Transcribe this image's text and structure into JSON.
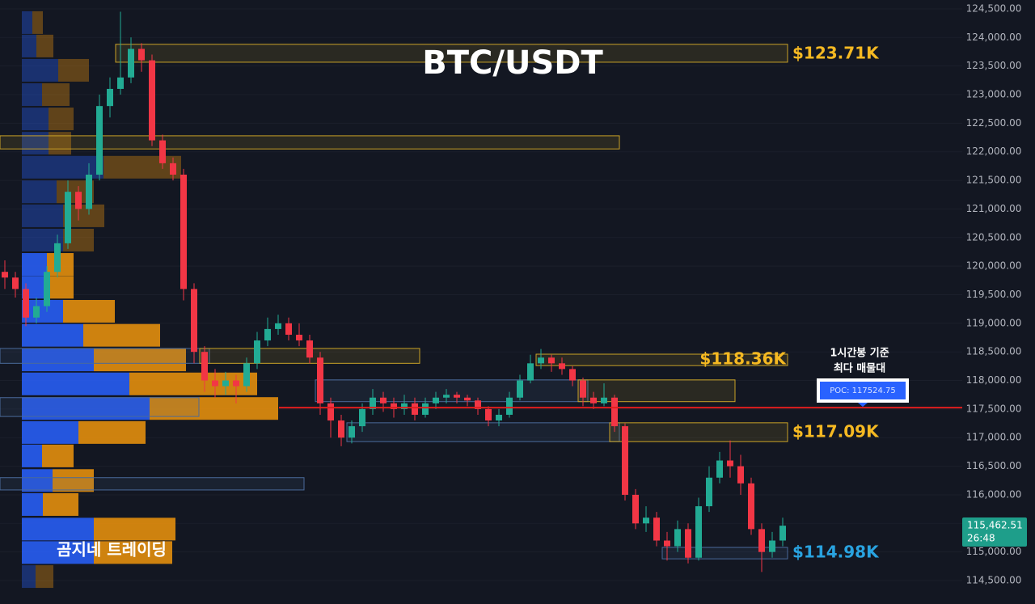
{
  "chart_data": {
    "type": "candlestick",
    "title": "BTC/USDT",
    "watermark": "곰지네 트레이딩",
    "ylim": [
      114090,
      124655
    ],
    "yticks": [
      {
        "value": 114500,
        "label": "114,500.00"
      },
      {
        "value": 115000,
        "label": "115,000.00"
      },
      {
        "value": 115500,
        "label": "115,500.00"
      },
      {
        "value": 116000,
        "label": "116,000.00"
      },
      {
        "value": 116500,
        "label": "116,500.00"
      },
      {
        "value": 117000,
        "label": "117,000.00"
      },
      {
        "value": 117500,
        "label": "117,500.00"
      },
      {
        "value": 118000,
        "label": "118,000.00"
      },
      {
        "value": 118500,
        "label": "118,500.00"
      },
      {
        "value": 119000,
        "label": "119,000.00"
      },
      {
        "value": 119500,
        "label": "119,500.00"
      },
      {
        "value": 120000,
        "label": "120,000.00"
      },
      {
        "value": 120500,
        "label": "120,500.00"
      },
      {
        "value": 121000,
        "label": "121,000.00"
      },
      {
        "value": 121500,
        "label": "121,500.00"
      },
      {
        "value": 122000,
        "label": "122,000.00"
      },
      {
        "value": 122500,
        "label": "122,500.00"
      },
      {
        "value": 123000,
        "label": "123,000.00"
      },
      {
        "value": 123500,
        "label": "123,500.00"
      },
      {
        "value": 124000,
        "label": "124,000.00"
      },
      {
        "value": 124500,
        "label": "124,500.00"
      }
    ],
    "grid": true,
    "up_color": "#22ab94",
    "down_color": "#f23645",
    "candles": {
      "open": [
        119900,
        119800,
        119600,
        119100,
        119300,
        119900,
        120400,
        121300,
        121000,
        121600,
        122800,
        123100,
        123300,
        123800,
        123600,
        122200,
        121800,
        121600,
        119600,
        118500,
        118000,
        117900,
        118000,
        117900,
        118300,
        118700,
        118900,
        119000,
        118800,
        118700,
        118400,
        117600,
        117300,
        117000,
        117200,
        117500,
        117700,
        117600,
        117500,
        117600,
        117400,
        117600,
        117700,
        117750,
        117700,
        117650,
        117500,
        117300,
        117400,
        117700,
        118000,
        118300,
        118400,
        118300,
        118200,
        118000,
        117700,
        117600,
        117700,
        117200,
        116000,
        115500,
        115600,
        115200,
        115100,
        115400,
        114900,
        115800,
        116300,
        116600,
        116500,
        116200,
        115400,
        115000,
        115200
      ],
      "high": [
        120100,
        119900,
        119700,
        119450,
        120000,
        120550,
        121500,
        121400,
        121800,
        123000,
        123300,
        124450,
        124000,
        123900,
        123700,
        122300,
        121900,
        121700,
        119700,
        118600,
        118200,
        118150,
        118100,
        118400,
        118850,
        119100,
        119150,
        119100,
        119000,
        118800,
        118500,
        117700,
        117400,
        117300,
        117600,
        117850,
        117800,
        117700,
        117750,
        117700,
        117700,
        117800,
        117850,
        117800,
        117750,
        117700,
        117550,
        117500,
        117800,
        118100,
        118450,
        118550,
        118450,
        118400,
        118250,
        118050,
        117800,
        117950,
        117750,
        117250,
        116100,
        115800,
        115700,
        115350,
        115550,
        115500,
        115950,
        116500,
        116750,
        116950,
        116700,
        116300,
        115500,
        115350,
        115600
      ],
      "low": [
        119600,
        119450,
        118950,
        119000,
        119200,
        119800,
        120300,
        120800,
        120900,
        121500,
        122600,
        123000,
        123200,
        123400,
        122100,
        121700,
        121500,
        119400,
        118300,
        117800,
        117700,
        117750,
        117600,
        117800,
        118200,
        118600,
        118800,
        118700,
        118600,
        118300,
        117400,
        117000,
        116850,
        116900,
        117100,
        117400,
        117450,
        117350,
        117400,
        117300,
        117350,
        117500,
        117600,
        117600,
        117550,
        117400,
        117200,
        117200,
        117350,
        117650,
        117950,
        118200,
        118150,
        118100,
        117900,
        117550,
        117500,
        117550,
        117100,
        115900,
        115400,
        115350,
        115100,
        114850,
        115000,
        114800,
        114850,
        115700,
        116200,
        116300,
        116000,
        115300,
        114650,
        114900,
        115100
      ],
      "close": [
        119800,
        119600,
        119100,
        119300,
        119900,
        120400,
        121300,
        121000,
        121600,
        122800,
        123100,
        123300,
        123800,
        123600,
        122200,
        121800,
        121600,
        119600,
        118500,
        118000,
        117900,
        118000,
        117900,
        118300,
        118700,
        118900,
        119000,
        118800,
        118700,
        118400,
        117600,
        117300,
        117000,
        117200,
        117500,
        117700,
        117600,
        117500,
        117600,
        117400,
        117600,
        117700,
        117750,
        117700,
        117650,
        117500,
        117300,
        117400,
        117700,
        118000,
        118300,
        118400,
        118300,
        118200,
        118000,
        117700,
        117600,
        117700,
        117200,
        116000,
        115500,
        115600,
        115200,
        115100,
        115400,
        114900,
        115800,
        116300,
        116600,
        116500,
        116200,
        115400,
        115000,
        115200,
        115460
      ]
    },
    "volume_profile": {
      "buy_color": "#2962ff",
      "sell_color": "#f0950c",
      "value_area": [
        114900,
        120100
      ],
      "rows": [
        {
          "price": 124260,
          "buy": 13,
          "sell": 13
        },
        {
          "price": 123850,
          "buy": 18,
          "sell": 21
        },
        {
          "price": 123425,
          "buy": 45,
          "sell": 38
        },
        {
          "price": 123000,
          "buy": 25,
          "sell": 34
        },
        {
          "price": 122575,
          "buy": 33,
          "sell": 31
        },
        {
          "price": 122150,
          "buy": 33,
          "sell": 28
        },
        {
          "price": 121730,
          "buy": 101,
          "sell": 96
        },
        {
          "price": 121300,
          "buy": 43,
          "sell": 46
        },
        {
          "price": 120880,
          "buy": 51,
          "sell": 51
        },
        {
          "price": 120455,
          "buy": 51,
          "sell": 38
        },
        {
          "price": 120030,
          "buy": 31,
          "sell": 33
        },
        {
          "price": 119630,
          "buy": 28,
          "sell": 36
        },
        {
          "price": 119210,
          "buy": 51,
          "sell": 64
        },
        {
          "price": 118790,
          "buy": 76,
          "sell": 95
        },
        {
          "price": 118360,
          "buy": 89,
          "sell": 114
        },
        {
          "price": 117940,
          "buy": 133,
          "sell": 158
        },
        {
          "price": 117510,
          "buy": 158,
          "sell": 159
        },
        {
          "price": 117090,
          "buy": 70,
          "sell": 83
        },
        {
          "price": 116680,
          "buy": 25,
          "sell": 39
        },
        {
          "price": 116250,
          "buy": 38,
          "sell": 51
        },
        {
          "price": 115830,
          "buy": 26,
          "sell": 44
        },
        {
          "price": 115400,
          "buy": 89,
          "sell": 101
        },
        {
          "price": 114990,
          "buy": 89,
          "sell": 97
        },
        {
          "price": 114570,
          "buy": 17,
          "sell": 22
        }
      ]
    },
    "zones": [
      {
        "low": 123567,
        "high": 123880,
        "from": 11,
        "to": 74,
        "color": "#c9a227",
        "label": {
          "value": 123710,
          "label": "$123.71K"
        }
      },
      {
        "low": 122050,
        "high": 122280,
        "from": 0,
        "to": 58,
        "color": "#c9a227"
      },
      {
        "low": 118300,
        "high": 118560,
        "from": 0,
        "to": 19,
        "color": "#4a6a9a"
      },
      {
        "low": 118300,
        "high": 118560,
        "from": 19,
        "to": 39,
        "color": "#c9a227"
      },
      {
        "low": 118260,
        "high": 118460,
        "from": 51,
        "to": 74,
        "color": "#c9a227",
        "label": {
          "value": 118360,
          "label": "$118.36K"
        }
      },
      {
        "low": 117630,
        "high": 118010,
        "from": 30,
        "to": 55,
        "color": "#4a6a9a"
      },
      {
        "low": 117630,
        "high": 118010,
        "from": 55,
        "to": 69,
        "color": "#c9a227"
      },
      {
        "low": 117370,
        "high": 117700,
        "from": 0,
        "to": 18,
        "color": "#4a6a9a"
      },
      {
        "low": 116930,
        "high": 117260,
        "from": 33,
        "to": 58,
        "color": "#4a6a9a"
      },
      {
        "low": 116930,
        "high": 117260,
        "from": 58,
        "to": 74,
        "color": "#c9a227",
        "label": {
          "value": 117090,
          "label": "$117.09K"
        }
      },
      {
        "low": 116085,
        "high": 116300,
        "from": 0,
        "to": 28,
        "color": "#4a6a9a"
      },
      {
        "low": 114880,
        "high": 115080,
        "from": 63,
        "to": 74,
        "color": "#4a6a9a",
        "label": {
          "value": 114980,
          "label": "$114.98K"
        }
      }
    ],
    "poc": {
      "value": 117524.75,
      "label": "POC: 117524.75",
      "color": "#e01e1e"
    },
    "poc_note": [
      "1시간봉 기준",
      "최다 매물대"
    ],
    "last_price": {
      "value": 115462.51,
      "label": "115,462.51",
      "countdown": "26:48",
      "color": "#1e9e8a"
    }
  }
}
